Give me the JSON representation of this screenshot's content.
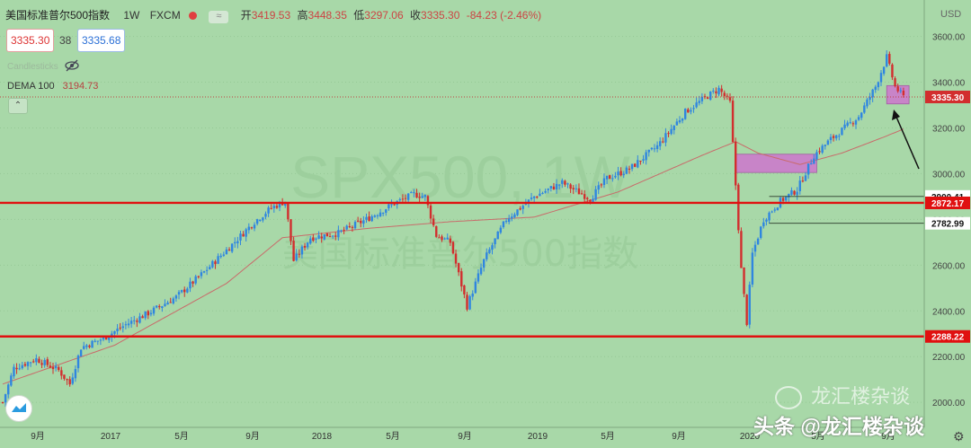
{
  "header": {
    "symbol_name": "美国标准普尔500指数",
    "interval": "1W",
    "source": "FXCM",
    "ohlc": {
      "open_label": "开",
      "open": "3419.53",
      "high_label": "高",
      "high": "3448.35",
      "low_label": "低",
      "low": "3297.06",
      "close_label": "收",
      "close": "3335.30",
      "change": "-84.23 (-2.46%)"
    },
    "bid": "3335.30",
    "spread": "38",
    "ask": "3335.68",
    "hidden_indicator": "Candlesticks",
    "indicator_name": "DEMA 100",
    "indicator_value": "3194.73"
  },
  "currency": "USD",
  "watermark": {
    "big": "SPX500, 1W",
    "small": "美国标准普尔500指数"
  },
  "footer_watermark": "头条 @龙汇楼杂谈",
  "overlay_watermark": "龙汇楼杂谈",
  "chart_data": {
    "type": "candlestick",
    "x_axis_labels": [
      "9月",
      "2017",
      "5月",
      "9月",
      "2018",
      "5月",
      "9月",
      "2019",
      "5月",
      "9月",
      "2020",
      "5月",
      "9月"
    ],
    "y_axis_ticks": [
      2000,
      2200,
      2400,
      2600,
      2800,
      3000,
      3200,
      3400,
      3600
    ],
    "ylim": [
      1930,
      3720
    ],
    "current_price_label": "3335.30",
    "indicator": {
      "name": "DEMA 100",
      "value": 3194.73
    },
    "horizontal_levels": [
      {
        "value": 2900.41,
        "label": "2900.41",
        "style": "thin"
      },
      {
        "value": 2872.17,
        "label": "2872.17",
        "style": "thick-red"
      },
      {
        "value": 2782.99,
        "label": "2782.99",
        "style": "thin"
      },
      {
        "value": 2288.22,
        "label": "2288.22",
        "style": "thick-red"
      }
    ],
    "supply_zones": [
      {
        "y1": 3005,
        "y2": 3085,
        "color": "#d070d0"
      },
      {
        "y1": 3305,
        "y2": 3385,
        "color": "#d070d0"
      }
    ],
    "price_path_anchors": [
      [
        0,
        2000
      ],
      [
        4,
        2150
      ],
      [
        12,
        2190
      ],
      [
        20,
        2140
      ],
      [
        24,
        2080
      ],
      [
        28,
        2240
      ],
      [
        36,
        2280
      ],
      [
        44,
        2340
      ],
      [
        52,
        2390
      ],
      [
        62,
        2460
      ],
      [
        72,
        2570
      ],
      [
        82,
        2690
      ],
      [
        90,
        2790
      ],
      [
        96,
        2850
      ],
      [
        101,
        2880
      ],
      [
        104,
        2620
      ],
      [
        110,
        2720
      ],
      [
        120,
        2740
      ],
      [
        130,
        2800
      ],
      [
        140,
        2870
      ],
      [
        147,
        2910
      ],
      [
        151,
        2900
      ],
      [
        155,
        2730
      ],
      [
        160,
        2700
      ],
      [
        166,
        2420
      ],
      [
        172,
        2620
      ],
      [
        180,
        2800
      ],
      [
        190,
        2900
      ],
      [
        200,
        2960
      ],
      [
        210,
        2890
      ],
      [
        216,
        2980
      ],
      [
        224,
        3020
      ],
      [
        234,
        3120
      ],
      [
        244,
        3270
      ],
      [
        252,
        3340
      ],
      [
        256,
        3370
      ],
      [
        260,
        3310
      ],
      [
        262,
        2950
      ],
      [
        264,
        2580
      ],
      [
        266,
        2350
      ],
      [
        268,
        2650
      ],
      [
        272,
        2800
      ],
      [
        278,
        2880
      ],
      [
        284,
        2930
      ],
      [
        290,
        3080
      ],
      [
        296,
        3150
      ],
      [
        306,
        3250
      ],
      [
        312,
        3380
      ],
      [
        316,
        3510
      ],
      [
        319,
        3380
      ],
      [
        322,
        3335
      ]
    ],
    "indicator_path_anchors": [
      [
        0,
        2080
      ],
      [
        40,
        2250
      ],
      [
        80,
        2520
      ],
      [
        100,
        2720
      ],
      [
        130,
        2760
      ],
      [
        160,
        2790
      ],
      [
        190,
        2810
      ],
      [
        220,
        2920
      ],
      [
        250,
        3080
      ],
      [
        262,
        3140
      ],
      [
        270,
        3090
      ],
      [
        285,
        3040
      ],
      [
        300,
        3090
      ],
      [
        315,
        3160
      ],
      [
        322,
        3195
      ]
    ],
    "seed": 7
  }
}
